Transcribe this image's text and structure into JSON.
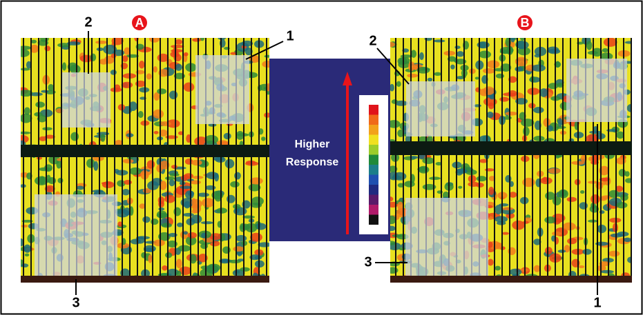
{
  "panels": [
    {
      "label": "A",
      "callouts": [
        "2",
        "1",
        "3"
      ]
    },
    {
      "label": "B",
      "callouts": [
        "2",
        "3",
        "1"
      ]
    }
  ],
  "legend": {
    "lines": [
      "Higher",
      "Response"
    ]
  }
}
